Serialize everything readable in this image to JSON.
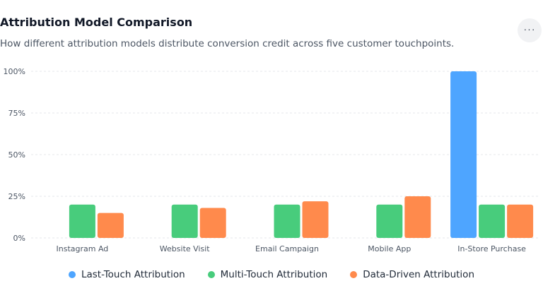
{
  "header": {
    "title": "Attribution Model Comparison",
    "subtitle": "How different attribution models distribute conversion credit across five customer touchpoints.",
    "menu_icon": "more-horizontal-icon",
    "menu_glyph": "···"
  },
  "chart_data": {
    "type": "bar",
    "title": "Attribution Model Comparison",
    "xlabel": "",
    "ylabel": "",
    "categories": [
      "Instagram Ad",
      "Website Visit",
      "Email Campaign",
      "Mobile App",
      "In-Store Purchase"
    ],
    "series": [
      {
        "name": "Last-Touch Attribution",
        "color": "#4ea5ff",
        "values": [
          0,
          0,
          0,
          0,
          100
        ]
      },
      {
        "name": "Multi-Touch Attribution",
        "color": "#48cc7c",
        "values": [
          20,
          20,
          20,
          20,
          20
        ]
      },
      {
        "name": "Data-Driven Attribution",
        "color": "#ff8a4c",
        "values": [
          15,
          18,
          22,
          25,
          20
        ]
      }
    ],
    "ylim": [
      0,
      100
    ],
    "yticks": [
      0,
      25,
      50,
      75,
      100
    ],
    "ytick_labels": [
      "0%",
      "25%",
      "50%",
      "75%",
      "100%"
    ],
    "grid": true,
    "legend_position": "bottom-center"
  }
}
